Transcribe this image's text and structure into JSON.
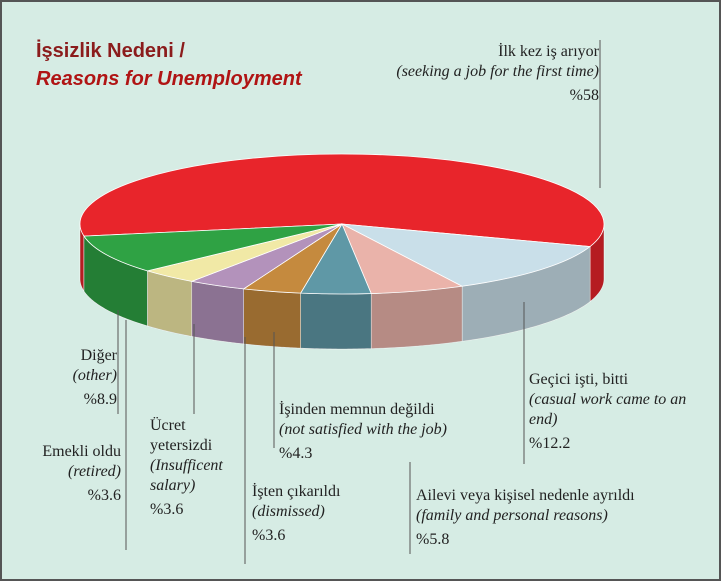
{
  "chart_data": {
    "type": "pie",
    "title": "İşsizlik Nedeni /",
    "subtitle": "Reasons for Unemployment",
    "categories": [
      "İlk kez iş arıyor",
      "Geçici işti, bitti",
      "Ailevi veya kişisel nedenle ayrıldı",
      "İşinden memnun değildi",
      "İşten çıkarıldı",
      "Ücret yetersizdi",
      "Emekli oldu",
      "Diğer"
    ],
    "categories_en": [
      "(seeking a job for the first time)",
      "(casual work came to an end)",
      "(family and personal reasons)",
      "(not satisfied with the job)",
      "(dismissed)",
      "(Insufficent salary)",
      "(retired)",
      "(other)"
    ],
    "values": [
      58,
      12.2,
      5.8,
      4.3,
      3.6,
      3.6,
      3.6,
      8.9
    ],
    "value_labels": [
      "%58",
      "%12.2",
      "%5.8",
      "%4.3",
      "%3.6",
      "%3.6",
      "%3.6",
      "%8.9"
    ],
    "colors": [
      "#e8252b",
      "#c9dfe9",
      "#eab3aa",
      "#5f98a6",
      "#c58a3e",
      "#b392bb",
      "#f1e9a6",
      "#2fa244"
    ]
  }
}
